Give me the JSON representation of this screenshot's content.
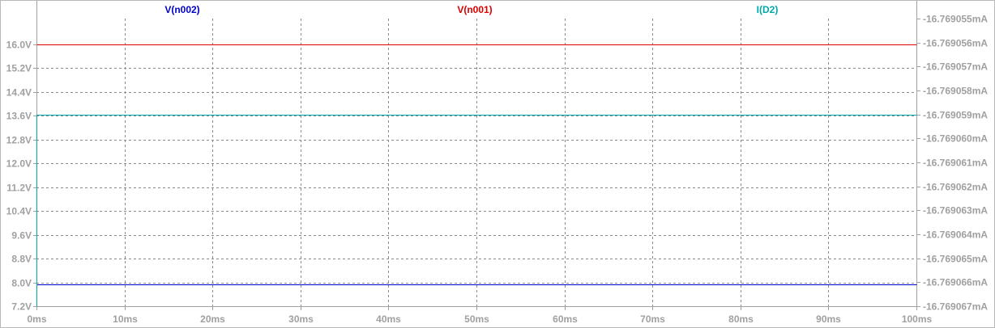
{
  "colors": {
    "background": "#ffffff",
    "axis": "#a0a0a0",
    "grid": "#8a8a8a",
    "tick_label": "#a0a0a0"
  },
  "chart_data": {
    "type": "line",
    "title": "",
    "xlabel": "",
    "ylabel": "",
    "grid": true,
    "legend_position": "top",
    "x_unit": "ms",
    "xlim": [
      0,
      100
    ],
    "x_ticks": [
      0,
      10,
      20,
      30,
      40,
      50,
      60,
      70,
      80,
      90,
      100
    ],
    "x_tick_labels": [
      "0ms",
      "10ms",
      "20ms",
      "30ms",
      "40ms",
      "50ms",
      "60ms",
      "70ms",
      "80ms",
      "90ms",
      "100ms"
    ],
    "y_left": {
      "unit": "V",
      "lim": [
        7.2,
        16.8
      ],
      "ticks": [
        7.2,
        8.0,
        8.8,
        9.6,
        10.4,
        11.2,
        12.0,
        12.8,
        13.6,
        14.4,
        15.2,
        16.0
      ],
      "tick_labels": [
        "7.2V",
        "8.0V",
        "8.8V",
        "9.6V",
        "10.4V",
        "11.2V",
        "12.0V",
        "12.8V",
        "13.6V",
        "14.4V",
        "15.2V",
        "16.0V"
      ]
    },
    "y_right": {
      "unit": "mA",
      "lim": [
        -16.769067,
        -16.769055
      ],
      "ticks": [
        -16.769067,
        -16.769066,
        -16.769065,
        -16.769064,
        -16.769063,
        -16.769062,
        -16.769061,
        -16.76906,
        -16.769059,
        -16.769058,
        -16.769057,
        -16.769056,
        -16.769055
      ],
      "tick_labels": [
        "-16.769067mA",
        "-16.769066mA",
        "-16.769065mA",
        "-16.769064mA",
        "-16.769063mA",
        "-16.769062mA",
        "-16.769061mA",
        "-16.769060mA",
        "-16.769059mA",
        "-16.769058mA",
        "-16.769057mA",
        "-16.769056mA",
        "-16.769055mA"
      ]
    },
    "series": [
      {
        "name": "V(n002)",
        "color": "#0000cc",
        "axis": "left",
        "x": [
          0,
          100
        ],
        "y": [
          7.92,
          7.92
        ]
      },
      {
        "name": "V(n001)",
        "color": "#dd0000",
        "axis": "left",
        "x": [
          0,
          100
        ],
        "y": [
          16.0,
          16.0
        ]
      },
      {
        "name": "I(D2)",
        "color": "#00a8a8",
        "axis": "right",
        "x": [
          0,
          0,
          100
        ],
        "y": [
          -16.769067,
          -16.769059,
          -16.769059
        ]
      }
    ]
  }
}
